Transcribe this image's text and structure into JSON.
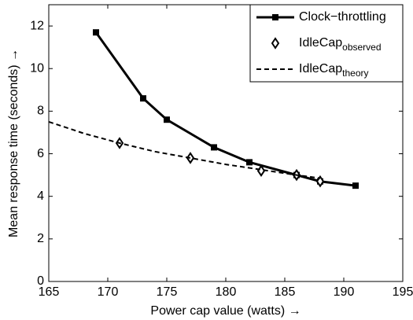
{
  "chart_data": {
    "type": "line",
    "xlabel": "Power cap value (watts) →",
    "ylabel": "Mean response time (seconds) →",
    "xlim": [
      165,
      195
    ],
    "xticks": [
      165,
      170,
      175,
      180,
      185,
      190,
      195
    ],
    "ylim": [
      0,
      13
    ],
    "yticks": [
      0,
      2,
      4,
      6,
      8,
      10,
      12
    ],
    "legend": "top-right",
    "series": [
      {
        "name": "Clock−throttling",
        "color": "#000000",
        "marker": "square",
        "linestyle": "solid",
        "x": [
          169,
          173,
          175,
          179,
          182,
          186,
          188,
          191
        ],
        "values": [
          11.7,
          8.6,
          7.6,
          6.3,
          5.6,
          5.0,
          4.7,
          4.5
        ]
      },
      {
        "name": "IdleCap",
        "subscript": "observed",
        "color": "#000000",
        "marker": "diamond",
        "linestyle": "none",
        "x": [
          171,
          177,
          183,
          186,
          188
        ],
        "values": [
          6.5,
          5.8,
          5.2,
          5.0,
          4.7
        ]
      },
      {
        "name": "IdleCap",
        "subscript": "theory",
        "color": "#000000",
        "marker": "none",
        "linestyle": "dashed",
        "x": [
          165,
          168,
          171,
          174,
          177,
          180,
          183,
          186,
          188
        ],
        "values": [
          7.5,
          6.95,
          6.5,
          6.1,
          5.8,
          5.5,
          5.25,
          5.0,
          4.85
        ]
      }
    ]
  }
}
